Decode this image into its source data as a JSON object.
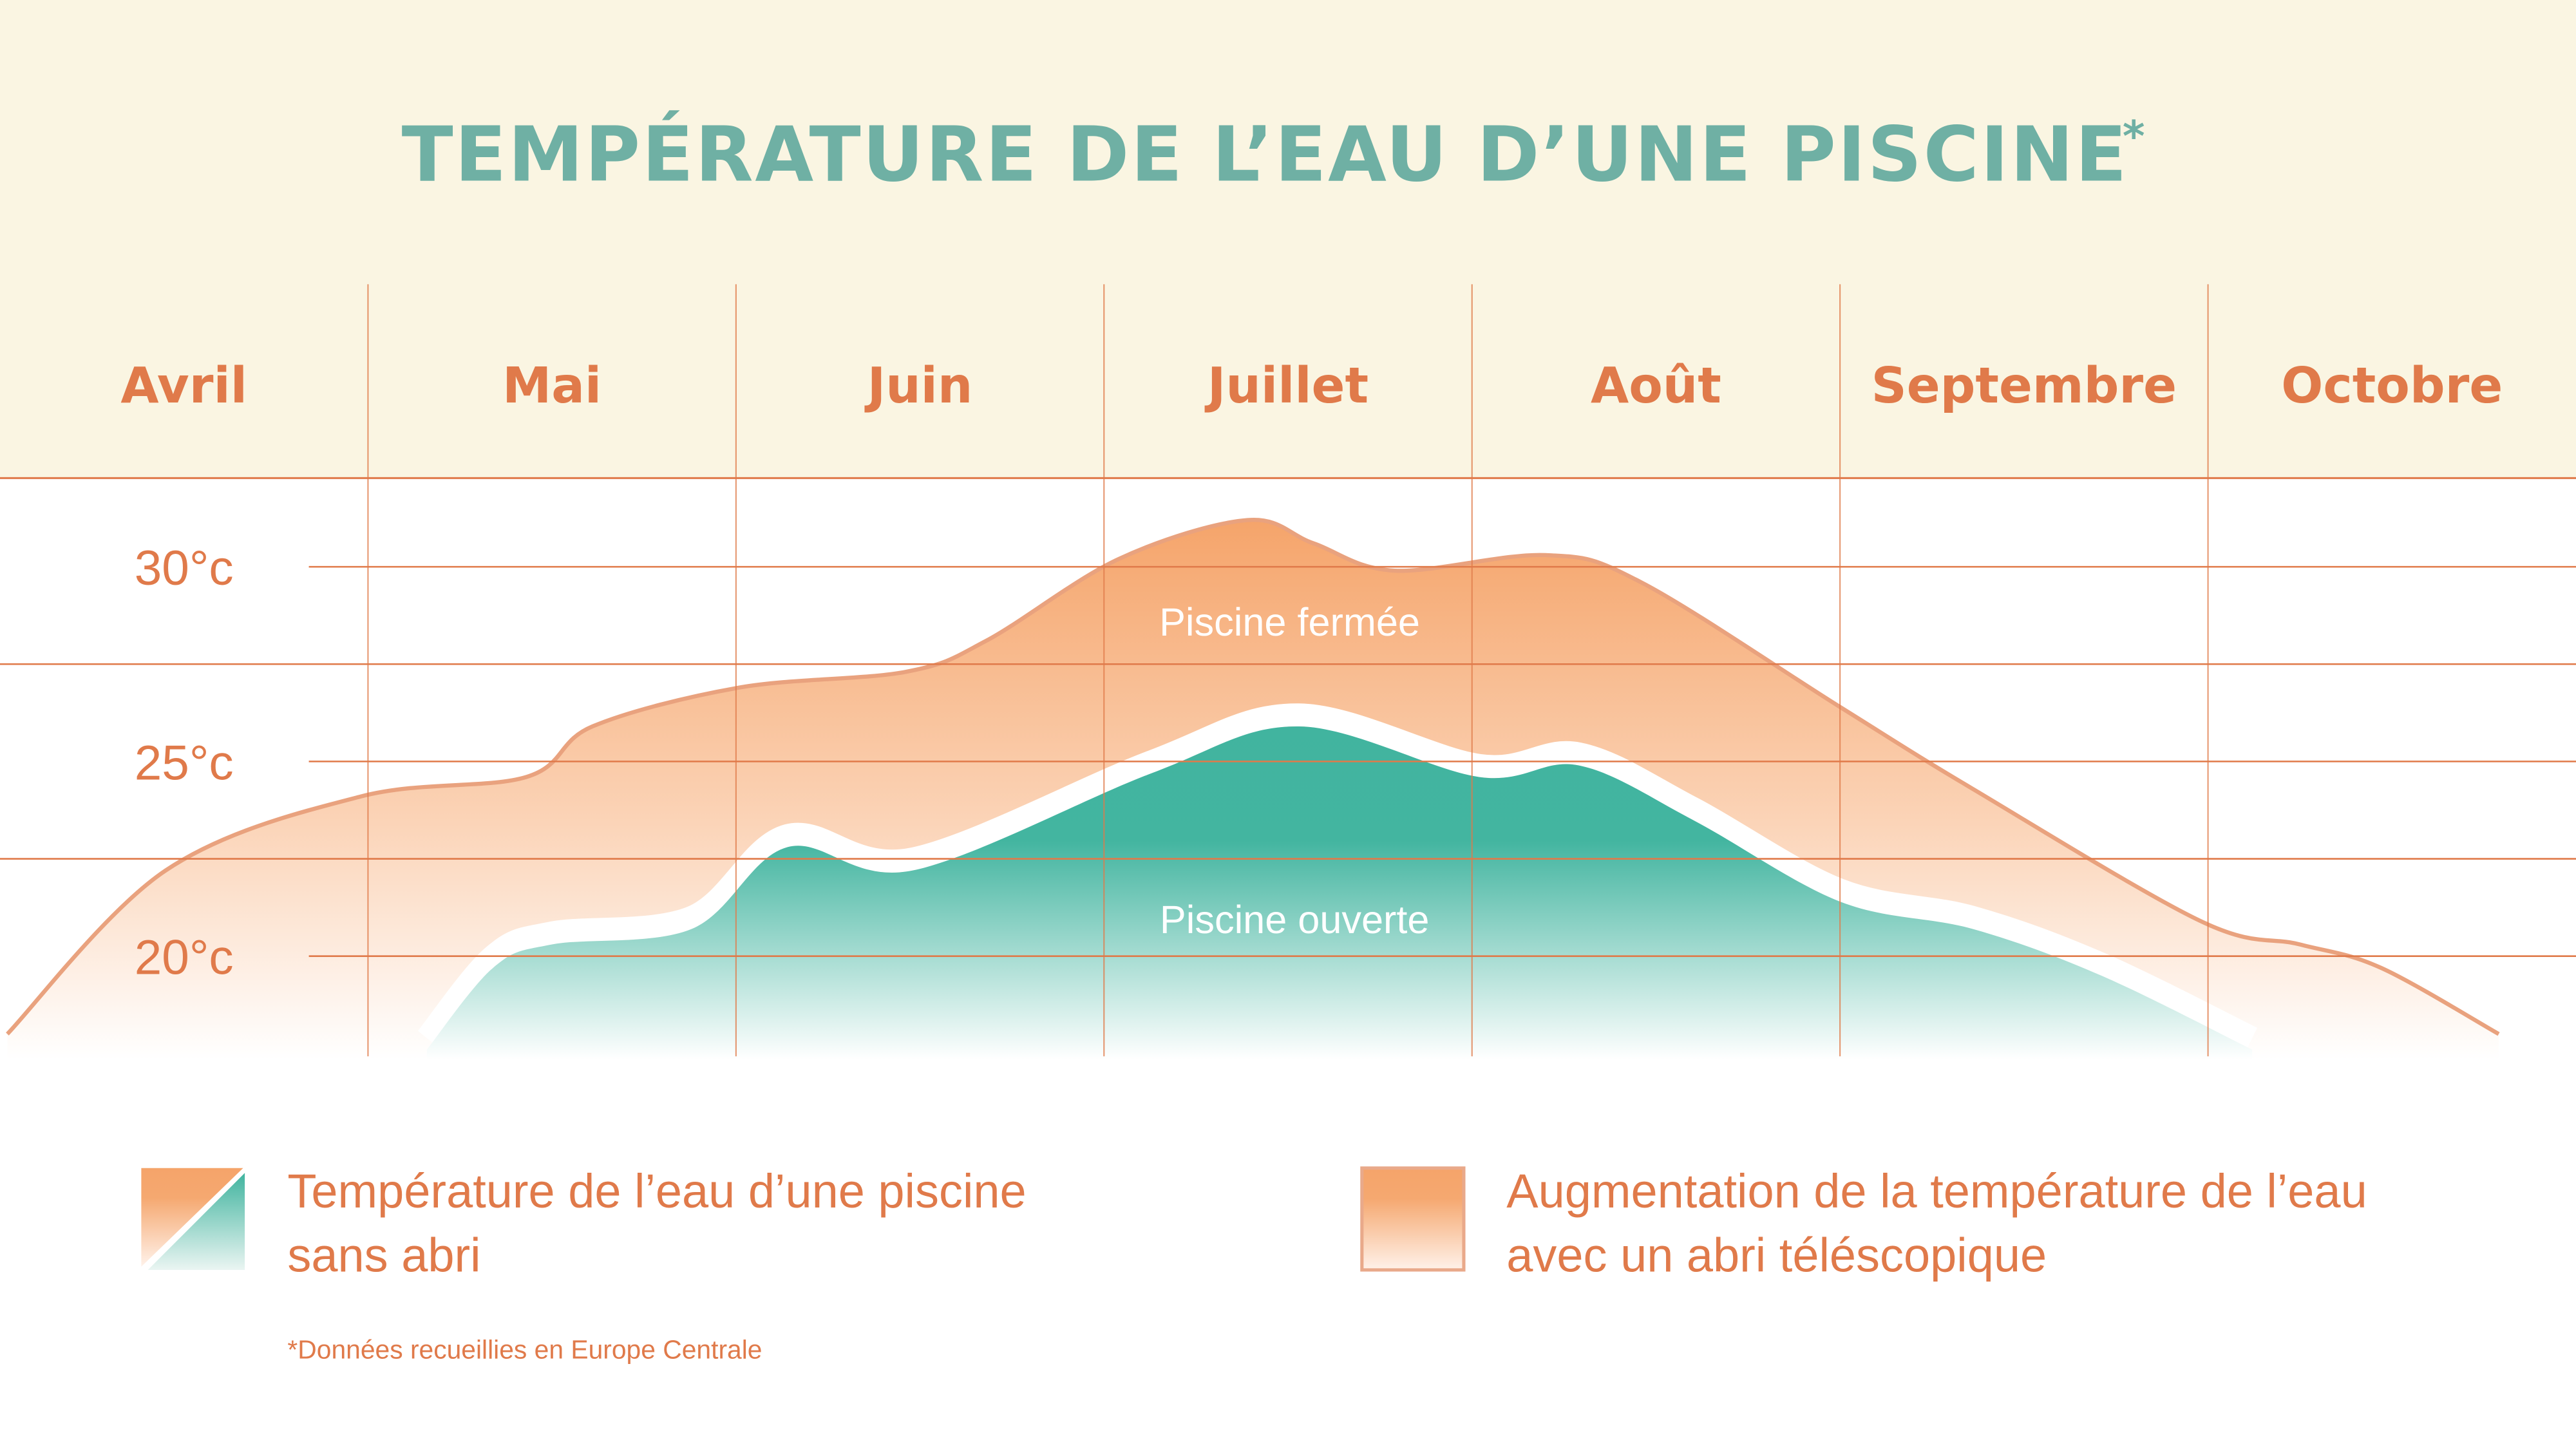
{
  "colors": {
    "header_bg": "#faf5e2",
    "title": "#6fb0a4",
    "accent": "#e07a4a",
    "closed_fill": "#f5a46a",
    "open_fill": "#41b49f"
  },
  "chart_data": {
    "type": "area",
    "title": "TEMPÉRATURE DE L’EAU D’UNE PISCINE",
    "title_mark": "*",
    "categories": [
      "Avril",
      "Mai",
      "Juin",
      "Juillet",
      "Août",
      "Septembre",
      "Octobre"
    ],
    "x_unit": "months from start of Avril",
    "yticks": [
      {
        "value": 30,
        "label": "30°c"
      },
      {
        "value": 25,
        "label": "25°c"
      },
      {
        "value": 20,
        "label": "20°c"
      }
    ],
    "ylabel": "",
    "grid": true,
    "series": [
      {
        "name": "Piscine fermée",
        "label": "Piscine fermée",
        "x": [
          0.02,
          0.45,
          0.98,
          1.43,
          1.61,
          2.01,
          2.46,
          2.68,
          3.04,
          3.39,
          3.57,
          3.79,
          4.2,
          4.46,
          5.0,
          5.36,
          5.98,
          6.25,
          6.47,
          6.79
        ],
        "y": [
          18.0,
          22.2,
          24.1,
          24.6,
          25.9,
          26.9,
          27.3,
          28.1,
          30.2,
          31.2,
          30.6,
          29.9,
          30.3,
          29.6,
          26.4,
          24.3,
          20.9,
          20.3,
          19.7,
          18.0
        ]
      },
      {
        "name": "Piscine ouverte",
        "label": "Piscine ouverte",
        "x": [
          1.16,
          1.34,
          1.5,
          1.88,
          2.14,
          2.48,
          3.13,
          3.53,
          4.02,
          4.29,
          4.6,
          5.0,
          5.36,
          5.71,
          6.12
        ],
        "y": [
          17.6,
          19.7,
          20.3,
          20.7,
          22.8,
          22.2,
          24.7,
          25.9,
          24.6,
          24.9,
          23.5,
          21.4,
          20.7,
          19.5,
          17.6
        ]
      }
    ],
    "legend": [
      {
        "line1": "Température de l’eau d’une piscine",
        "line2": "sans abri"
      },
      {
        "line1": "Augmentation de la température de l’eau",
        "line2": "avec un abri téléscopique"
      }
    ],
    "legend_position": "bottom",
    "footnote": "*Données recueillies en Europe Centrale"
  }
}
